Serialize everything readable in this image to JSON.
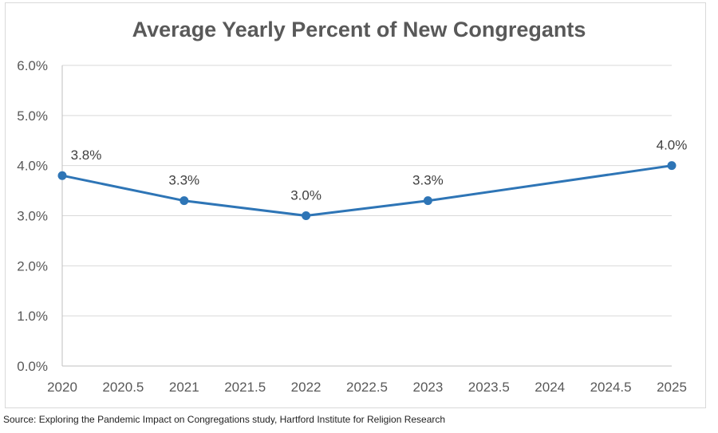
{
  "chart_data": {
    "type": "line",
    "title": "Average Yearly Percent of New Congregants",
    "xlabel": "",
    "ylabel": "",
    "x": [
      2020,
      2021,
      2022,
      2023,
      2025
    ],
    "series": [
      {
        "values": [
          3.8,
          3.3,
          3.0,
          3.3,
          4.0
        ],
        "labels": [
          "3.8%",
          "3.3%",
          "3.0%",
          "3.3%",
          "4.0%"
        ]
      }
    ],
    "xlim": [
      2020,
      2025
    ],
    "ylim": [
      0,
      6
    ],
    "x_ticks": [
      "2020",
      "2020.5",
      "2021",
      "2021.5",
      "2022",
      "2022.5",
      "2023",
      "2023.5",
      "2024",
      "2024.5",
      "2025"
    ],
    "y_ticks": [
      "0.0%",
      "1.0%",
      "2.0%",
      "3.0%",
      "4.0%",
      "5.0%",
      "6.0%"
    ],
    "grid": true,
    "legend": "none",
    "line_color": "#2e75b6"
  },
  "source_note": "Source: Exploring the Pandemic Impact on Congregations study, Hartford Institute for Religion Research"
}
